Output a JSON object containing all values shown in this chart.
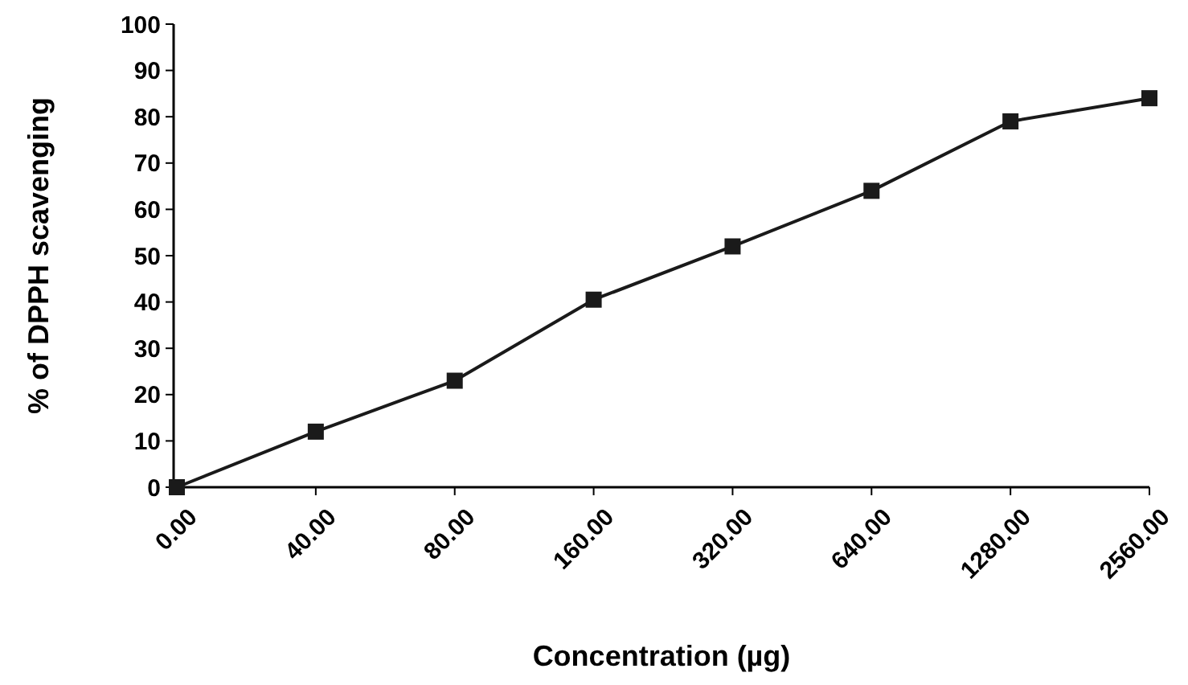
{
  "chart_data": {
    "type": "line",
    "xlabel": "Concentration (µg)",
    "ylabel": "% of DPPH scavenging",
    "categories": [
      "0.00",
      "40.00",
      "80.00",
      "160.00",
      "320.00",
      "640.00",
      "1280.00",
      "2560.00"
    ],
    "series": [
      {
        "color": "#1a1a1a",
        "values": [
          0,
          12,
          23,
          40.5,
          52,
          64,
          79,
          84
        ]
      }
    ],
    "ylim": [
      0,
      100
    ],
    "yticks": [
      0,
      10,
      20,
      30,
      40,
      50,
      60,
      70,
      80,
      90,
      100
    ],
    "grid": false,
    "marker": "square",
    "line_style": "solid"
  }
}
